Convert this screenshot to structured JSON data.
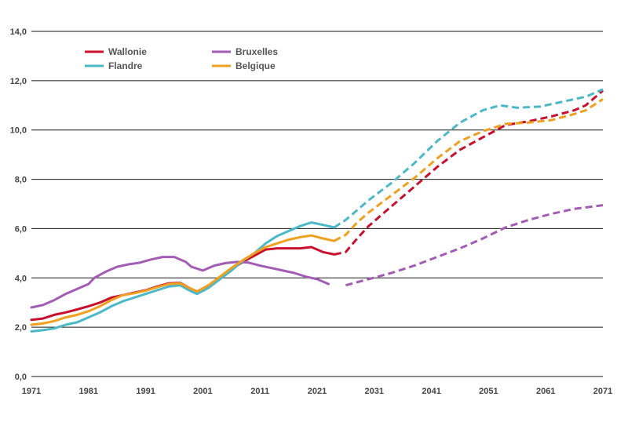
{
  "chart_data": {
    "type": "line",
    "title": "",
    "xlabel": "",
    "ylabel": "",
    "xlim": [
      1971,
      2071
    ],
    "ylim": [
      0,
      14
    ],
    "y_ticks": [
      "0,0",
      "2,0",
      "4,0",
      "6,0",
      "8,0",
      "10,0",
      "12,0",
      "14,0"
    ],
    "x_ticks": [
      "1971",
      "1981",
      "1991",
      "2001",
      "2011",
      "2021",
      "2031",
      "2041",
      "2051",
      "2061",
      "2071"
    ],
    "grid": "horizontal",
    "legend_position": "top-left",
    "projection_start": 2024,
    "series": [
      {
        "name": "Wallonie",
        "color": "#c8102e",
        "points": [
          [
            1971,
            2.3
          ],
          [
            1973,
            2.35
          ],
          [
            1975,
            2.5
          ],
          [
            1977,
            2.6
          ],
          [
            1979,
            2.72
          ],
          [
            1981,
            2.85
          ],
          [
            1983,
            3.0
          ],
          [
            1985,
            3.2
          ],
          [
            1987,
            3.3
          ],
          [
            1989,
            3.4
          ],
          [
            1991,
            3.5
          ],
          [
            1993,
            3.65
          ],
          [
            1995,
            3.78
          ],
          [
            1997,
            3.8
          ],
          [
            1999,
            3.55
          ],
          [
            2000,
            3.45
          ],
          [
            2002,
            3.7
          ],
          [
            2004,
            4.0
          ],
          [
            2006,
            4.35
          ],
          [
            2008,
            4.65
          ],
          [
            2010,
            4.9
          ],
          [
            2012,
            5.15
          ],
          [
            2014,
            5.2
          ],
          [
            2016,
            5.2
          ],
          [
            2018,
            5.2
          ],
          [
            2020,
            5.25
          ],
          [
            2021,
            5.15
          ],
          [
            2022,
            5.05
          ],
          [
            2024,
            4.95
          ],
          [
            2026,
            5.05
          ],
          [
            2028,
            5.6
          ],
          [
            2030,
            6.1
          ],
          [
            2034,
            6.9
          ],
          [
            2038,
            7.7
          ],
          [
            2042,
            8.5
          ],
          [
            2046,
            9.2
          ],
          [
            2050,
            9.7
          ],
          [
            2054,
            10.2
          ],
          [
            2058,
            10.35
          ],
          [
            2062,
            10.55
          ],
          [
            2066,
            10.8
          ],
          [
            2068,
            11.0
          ],
          [
            2071,
            11.6
          ]
        ]
      },
      {
        "name": "Bruxelles",
        "color": "#a35cb4",
        "points": [
          [
            1971,
            2.8
          ],
          [
            1973,
            2.9
          ],
          [
            1975,
            3.1
          ],
          [
            1977,
            3.35
          ],
          [
            1979,
            3.55
          ],
          [
            1981,
            3.75
          ],
          [
            1982,
            4.0
          ],
          [
            1984,
            4.25
          ],
          [
            1986,
            4.45
          ],
          [
            1988,
            4.55
          ],
          [
            1990,
            4.62
          ],
          [
            1992,
            4.75
          ],
          [
            1994,
            4.85
          ],
          [
            1996,
            4.85
          ],
          [
            1998,
            4.65
          ],
          [
            1999,
            4.45
          ],
          [
            2001,
            4.3
          ],
          [
            2003,
            4.5
          ],
          [
            2005,
            4.6
          ],
          [
            2007,
            4.65
          ],
          [
            2009,
            4.62
          ],
          [
            2011,
            4.5
          ],
          [
            2013,
            4.4
          ],
          [
            2015,
            4.3
          ],
          [
            2017,
            4.2
          ],
          [
            2019,
            4.05
          ],
          [
            2021,
            3.95
          ],
          [
            2023,
            3.75
          ],
          [
            2026,
            3.7
          ],
          [
            2030,
            3.95
          ],
          [
            2034,
            4.2
          ],
          [
            2038,
            4.5
          ],
          [
            2042,
            4.85
          ],
          [
            2046,
            5.2
          ],
          [
            2050,
            5.6
          ],
          [
            2054,
            6.05
          ],
          [
            2058,
            6.35
          ],
          [
            2062,
            6.6
          ],
          [
            2066,
            6.8
          ],
          [
            2071,
            6.95
          ]
        ]
      },
      {
        "name": "Flandre",
        "color": "#4bb8c8",
        "points": [
          [
            1971,
            1.83
          ],
          [
            1973,
            1.88
          ],
          [
            1975,
            1.95
          ],
          [
            1977,
            2.1
          ],
          [
            1979,
            2.2
          ],
          [
            1981,
            2.4
          ],
          [
            1983,
            2.6
          ],
          [
            1985,
            2.85
          ],
          [
            1987,
            3.05
          ],
          [
            1989,
            3.2
          ],
          [
            1991,
            3.35
          ],
          [
            1993,
            3.5
          ],
          [
            1995,
            3.65
          ],
          [
            1997,
            3.7
          ],
          [
            1999,
            3.45
          ],
          [
            2000,
            3.35
          ],
          [
            2002,
            3.6
          ],
          [
            2004,
            3.95
          ],
          [
            2006,
            4.3
          ],
          [
            2008,
            4.7
          ],
          [
            2010,
            5.0
          ],
          [
            2012,
            5.4
          ],
          [
            2014,
            5.7
          ],
          [
            2016,
            5.9
          ],
          [
            2018,
            6.1
          ],
          [
            2020,
            6.25
          ],
          [
            2022,
            6.15
          ],
          [
            2024,
            6.05
          ],
          [
            2026,
            6.35
          ],
          [
            2028,
            6.75
          ],
          [
            2030,
            7.15
          ],
          [
            2034,
            7.85
          ],
          [
            2038,
            8.65
          ],
          [
            2042,
            9.55
          ],
          [
            2046,
            10.3
          ],
          [
            2050,
            10.8
          ],
          [
            2053,
            11.0
          ],
          [
            2056,
            10.9
          ],
          [
            2060,
            10.95
          ],
          [
            2064,
            11.15
          ],
          [
            2068,
            11.35
          ],
          [
            2071,
            11.65
          ]
        ]
      },
      {
        "name": "Belgique",
        "color": "#f0a020",
        "points": [
          [
            1971,
            2.1
          ],
          [
            1973,
            2.15
          ],
          [
            1975,
            2.25
          ],
          [
            1977,
            2.4
          ],
          [
            1979,
            2.5
          ],
          [
            1981,
            2.65
          ],
          [
            1983,
            2.85
          ],
          [
            1985,
            3.1
          ],
          [
            1987,
            3.3
          ],
          [
            1989,
            3.38
          ],
          [
            1991,
            3.48
          ],
          [
            1993,
            3.62
          ],
          [
            1995,
            3.75
          ],
          [
            1997,
            3.78
          ],
          [
            1999,
            3.55
          ],
          [
            2000,
            3.45
          ],
          [
            2002,
            3.7
          ],
          [
            2004,
            4.05
          ],
          [
            2006,
            4.4
          ],
          [
            2008,
            4.72
          ],
          [
            2010,
            5.0
          ],
          [
            2012,
            5.25
          ],
          [
            2014,
            5.4
          ],
          [
            2016,
            5.55
          ],
          [
            2018,
            5.65
          ],
          [
            2020,
            5.72
          ],
          [
            2022,
            5.6
          ],
          [
            2024,
            5.5
          ],
          [
            2026,
            5.75
          ],
          [
            2028,
            6.25
          ],
          [
            2030,
            6.65
          ],
          [
            2034,
            7.35
          ],
          [
            2038,
            8.05
          ],
          [
            2042,
            8.85
          ],
          [
            2046,
            9.55
          ],
          [
            2050,
            9.95
          ],
          [
            2054,
            10.25
          ],
          [
            2058,
            10.3
          ],
          [
            2062,
            10.4
          ],
          [
            2066,
            10.65
          ],
          [
            2068,
            10.8
          ],
          [
            2071,
            11.25
          ]
        ]
      }
    ]
  }
}
